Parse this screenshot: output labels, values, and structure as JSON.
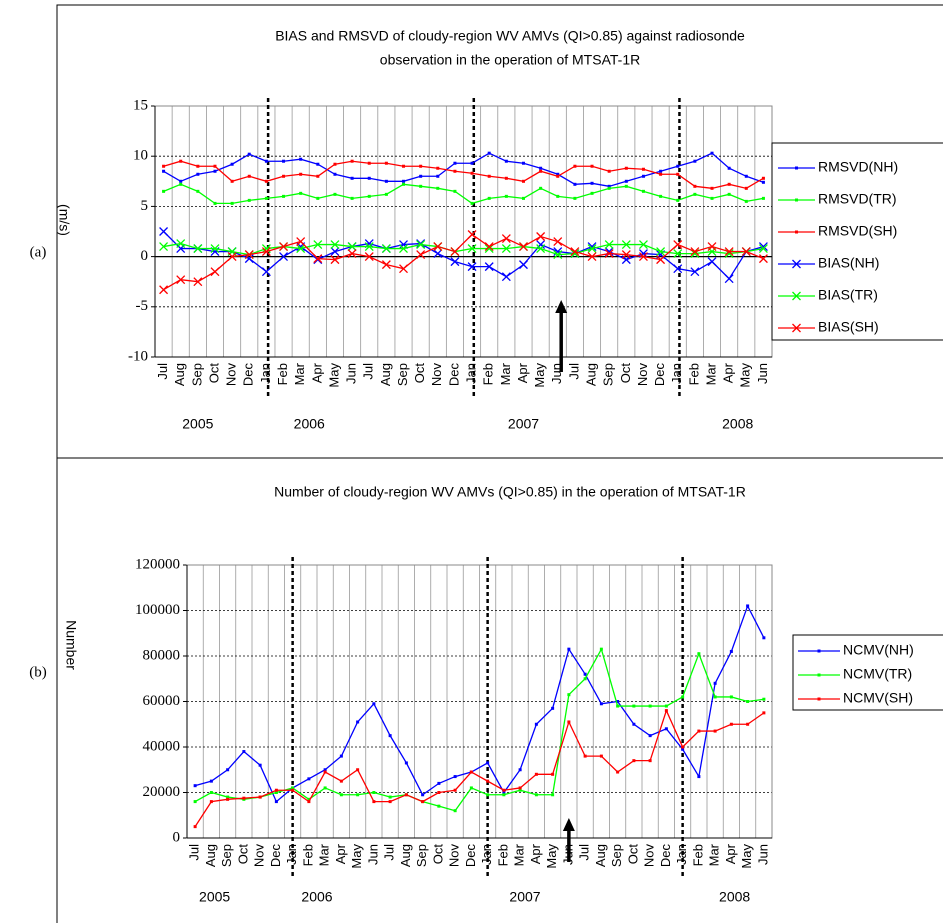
{
  "chart_data": [
    {
      "type": "line",
      "panel_label": "(a)",
      "title_lines": [
        "BIAS and RMSVD of cloudy-region WV AMVs (QI>0.85) against radiosonde",
        "observation in the operation of MTSAT-1R"
      ],
      "y_label": "(m/s)",
      "categories": [
        "Jul",
        "Aug",
        "Sep",
        "Oct",
        "Nov",
        "Dec",
        "Jan",
        "Feb",
        "Mar",
        "Apr",
        "May",
        "Jun",
        "Jul",
        "Aug",
        "Sep",
        "Oct",
        "Nov",
        "Dec",
        "Jan",
        "Feb",
        "Mar",
        "Apr",
        "May",
        "Jun",
        "Jul",
        "Aug",
        "Sep",
        "Oct",
        "Nov",
        "Dec",
        "Jan",
        "Feb",
        "Mar",
        "Apr",
        "May",
        "Jun"
      ],
      "year_labels": [
        "2005",
        "2006",
        "2007",
        "2008"
      ],
      "ylim": [
        -10,
        15
      ],
      "yticks": [
        -10,
        -5,
        0,
        5,
        10,
        15
      ],
      "grid": true,
      "legend": "right",
      "series": [
        {
          "name": "RMSVD(NH)",
          "color": "#0000ff",
          "marker": "square",
          "values": [
            8.5,
            7.5,
            8.2,
            8.5,
            9.2,
            10.2,
            9.5,
            9.5,
            9.7,
            9.2,
            8.2,
            7.8,
            7.8,
            7.5,
            7.5,
            8.0,
            8.0,
            9.3,
            9.3,
            10.3,
            9.5,
            9.3,
            8.8,
            8.2,
            7.2,
            7.3,
            7.0,
            7.5,
            8.0,
            8.5,
            9.0,
            9.5,
            10.3,
            8.8,
            8.0,
            7.4
          ]
        },
        {
          "name": "RMSVD(TR)",
          "color": "#00ff00",
          "marker": "square",
          "values": [
            6.5,
            7.2,
            6.5,
            5.3,
            5.3,
            5.6,
            5.8,
            6.0,
            6.3,
            5.8,
            6.2,
            5.8,
            6.0,
            6.2,
            7.2,
            7.0,
            6.8,
            6.5,
            5.3,
            5.8,
            6.0,
            5.8,
            6.8,
            6.0,
            5.8,
            6.3,
            6.8,
            7.0,
            6.5,
            6.0,
            5.6,
            6.2,
            5.8,
            6.2,
            5.5,
            5.8
          ]
        },
        {
          "name": "RMSVD(SH)",
          "color": "#ff0000",
          "marker": "square",
          "values": [
            9.0,
            9.5,
            9.0,
            9.0,
            7.5,
            8.0,
            7.5,
            8.0,
            8.2,
            8.0,
            9.2,
            9.5,
            9.3,
            9.3,
            9.0,
            9.0,
            8.8,
            8.5,
            8.3,
            8.0,
            7.8,
            7.5,
            8.5,
            8.0,
            9.0,
            9.0,
            8.5,
            8.8,
            8.7,
            8.2,
            8.2,
            7.0,
            6.8,
            7.2,
            6.8,
            7.8
          ]
        },
        {
          "name": "BIAS(NH)",
          "color": "#0000ff",
          "marker": "x",
          "values": [
            2.5,
            0.8,
            0.8,
            0.5,
            0.5,
            -0.2,
            -1.5,
            0.0,
            1.0,
            -0.3,
            0.5,
            1.0,
            1.3,
            0.8,
            1.2,
            1.3,
            0.3,
            -0.5,
            -1.0,
            -1.0,
            -2.0,
            -0.8,
            1.2,
            0.5,
            0.3,
            1.0,
            0.5,
            -0.3,
            0.3,
            0.2,
            -1.2,
            -1.5,
            -0.5,
            -2.2,
            0.5,
            1.0
          ]
        },
        {
          "name": "BIAS(TR)",
          "color": "#00ff00",
          "marker": "x",
          "values": [
            1.0,
            1.3,
            0.8,
            0.8,
            0.5,
            0.2,
            0.8,
            1.0,
            0.8,
            1.2,
            1.2,
            1.0,
            1.0,
            0.8,
            0.8,
            1.2,
            1.0,
            0.5,
            0.8,
            0.8,
            0.8,
            1.0,
            0.8,
            0.2,
            0.3,
            0.8,
            1.2,
            1.2,
            1.2,
            0.5,
            0.3,
            0.3,
            0.5,
            0.3,
            0.5,
            0.8
          ]
        },
        {
          "name": "BIAS(SH)",
          "color": "#ff0000",
          "marker": "x",
          "values": [
            -3.3,
            -2.3,
            -2.5,
            -1.5,
            0.0,
            0.2,
            0.5,
            1.0,
            1.5,
            -0.2,
            -0.3,
            0.3,
            0.0,
            -0.8,
            -1.2,
            0.2,
            1.0,
            0.5,
            2.2,
            1.0,
            1.8,
            1.0,
            2.0,
            1.5,
            0.5,
            0.0,
            0.3,
            0.2,
            0.0,
            -0.3,
            1.2,
            0.5,
            1.0,
            0.5,
            0.5,
            -0.2
          ]
        }
      ]
    },
    {
      "type": "line",
      "panel_label": "(b)",
      "title_lines": [
        "Number of cloudy-region WV AMVs (QI>0.85) in the operation of MTSAT-1R"
      ],
      "y_label": "Number",
      "categories": [
        "Jul",
        "Aug",
        "Sep",
        "Oct",
        "Nov",
        "Dec",
        "Jan",
        "Feb",
        "Mar",
        "Apr",
        "May",
        "Jun",
        "Jul",
        "Aug",
        "Sep",
        "Oct",
        "Nov",
        "Dec",
        "Jan",
        "Feb",
        "Mar",
        "Apr",
        "May",
        "Jun",
        "Jul",
        "Aug",
        "Sep",
        "Oct",
        "Nov",
        "Dec",
        "Jan",
        "Feb",
        "Mar",
        "Apr",
        "May",
        "Jun"
      ],
      "year_labels": [
        "2005",
        "2006",
        "2007",
        "2008"
      ],
      "ylim": [
        0,
        120000
      ],
      "yticks": [
        0,
        20000,
        40000,
        60000,
        80000,
        100000,
        120000
      ],
      "grid": true,
      "legend": "right",
      "series": [
        {
          "name": "NCMV(NH)",
          "color": "#0000ff",
          "marker": "square",
          "values": [
            23000,
            25000,
            30000,
            38000,
            32000,
            16000,
            22000,
            26000,
            30000,
            36000,
            51000,
            59000,
            45000,
            33000,
            19000,
            24000,
            27000,
            29000,
            33000,
            20000,
            30000,
            50000,
            57000,
            83000,
            72000,
            59000,
            60000,
            50000,
            45000,
            48000,
            39000,
            27000,
            68000,
            82000,
            102000,
            88000
          ]
        },
        {
          "name": "NCMV(TR)",
          "color": "#00ff00",
          "marker": "square",
          "values": [
            16000,
            20000,
            18000,
            17000,
            18000,
            20000,
            22000,
            17000,
            22000,
            19000,
            19000,
            20000,
            18000,
            19000,
            16000,
            14000,
            12000,
            22000,
            19000,
            19000,
            21000,
            19000,
            19000,
            63000,
            70000,
            83000,
            58000,
            58000,
            58000,
            58000,
            62000,
            81000,
            62000,
            62000,
            60000,
            61000
          ]
        },
        {
          "name": "NCMV(SH)",
          "color": "#ff0000",
          "marker": "square",
          "values": [
            5000,
            16000,
            17000,
            17500,
            18000,
            21000,
            21000,
            16000,
            29000,
            25000,
            30000,
            16000,
            16000,
            19000,
            16000,
            20000,
            21000,
            29000,
            25000,
            21000,
            22000,
            28000,
            28000,
            51000,
            36000,
            36000,
            29000,
            34000,
            34000,
            56000,
            40000,
            47000,
            47000,
            50000,
            50000,
            55000
          ]
        }
      ]
    }
  ]
}
